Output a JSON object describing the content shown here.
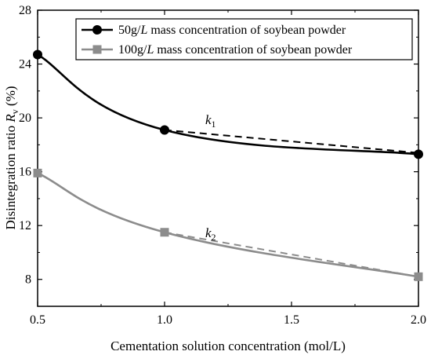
{
  "chart_data": {
    "type": "line",
    "xlabel": "Cementation solution concentration (mol/L)",
    "ylabel_main": "Disintegration ratio ",
    "ylabel_symbol": "R",
    "ylabel_sub": "v",
    "ylabel_unit": " (%)",
    "xlim": [
      0.5,
      2.0
    ],
    "ylim": [
      6,
      28
    ],
    "xticks": [
      0.5,
      1.0,
      1.5,
      2.0
    ],
    "xtick_labels": [
      "0.5",
      "1.0",
      "1.5",
      "2.0"
    ],
    "yticks": [
      8,
      12,
      16,
      20,
      24,
      28
    ],
    "ytick_labels": [
      "8",
      "12",
      "16",
      "20",
      "24",
      "28"
    ],
    "grid": false,
    "legend_position": "top-right",
    "series": [
      {
        "name": "50g/L mass concentration of soybean powder",
        "legend_prefix": "50g/",
        "legend_italic": "L",
        "legend_suffix": " mass concentration of soybean powder",
        "color": "#000000",
        "marker": "circle",
        "x": [
          0.5,
          1.0,
          2.0
        ],
        "y": [
          24.7,
          19.1,
          17.3
        ],
        "trend_label": "k",
        "trend_sub": "1",
        "trend_from": [
          1.0,
          19.1
        ],
        "trend_to": [
          2.0,
          17.4
        ]
      },
      {
        "name": "100g/L mass concentration of soybean powder",
        "legend_prefix": "100g/",
        "legend_italic": "L",
        "legend_suffix": " mass concentration of soybean powder",
        "color": "#8c8c8c",
        "marker": "square",
        "x": [
          0.5,
          1.0,
          2.0
        ],
        "y": [
          15.9,
          11.5,
          8.2
        ],
        "trend_label": "k",
        "trend_sub": "2",
        "trend_from": [
          1.0,
          11.5
        ],
        "trend_to": [
          2.0,
          8.2
        ]
      }
    ]
  }
}
